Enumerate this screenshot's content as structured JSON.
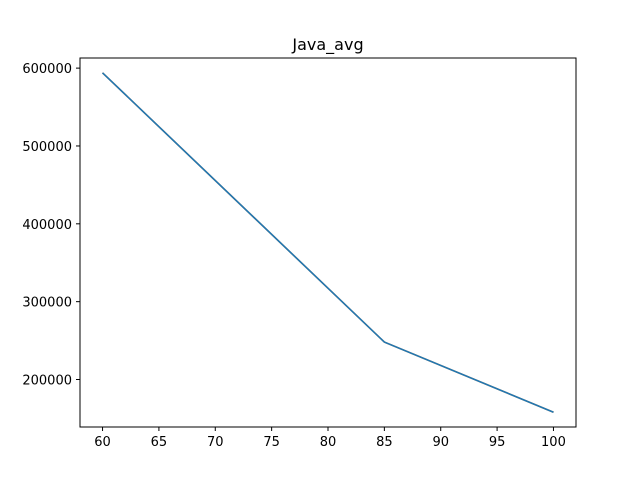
{
  "chart_data": {
    "type": "line",
    "title": "Java_avg",
    "xlabel": "",
    "ylabel": "",
    "x": [
      60,
      85,
      100
    ],
    "series": [
      {
        "values": [
          594000,
          248000,
          158000
        ],
        "color": "#ff7f0e"
      },
      {
        "values": [
          594000,
          248000,
          158000
        ],
        "color": "#1f77b4"
      }
    ],
    "xlim": [
      58,
      102
    ],
    "ylim": [
      139000,
      613000
    ],
    "xticks": [
      60,
      65,
      70,
      75,
      80,
      85,
      90,
      95,
      100
    ],
    "xtick_labels": [
      "60",
      "65",
      "70",
      "75",
      "80",
      "85",
      "90",
      "95",
      "100"
    ],
    "yticks": [
      200000,
      300000,
      400000,
      500000,
      600000
    ],
    "ytick_labels": [
      "200000",
      "300000",
      "400000",
      "500000",
      "600000"
    ],
    "grid": false,
    "legend": false
  }
}
